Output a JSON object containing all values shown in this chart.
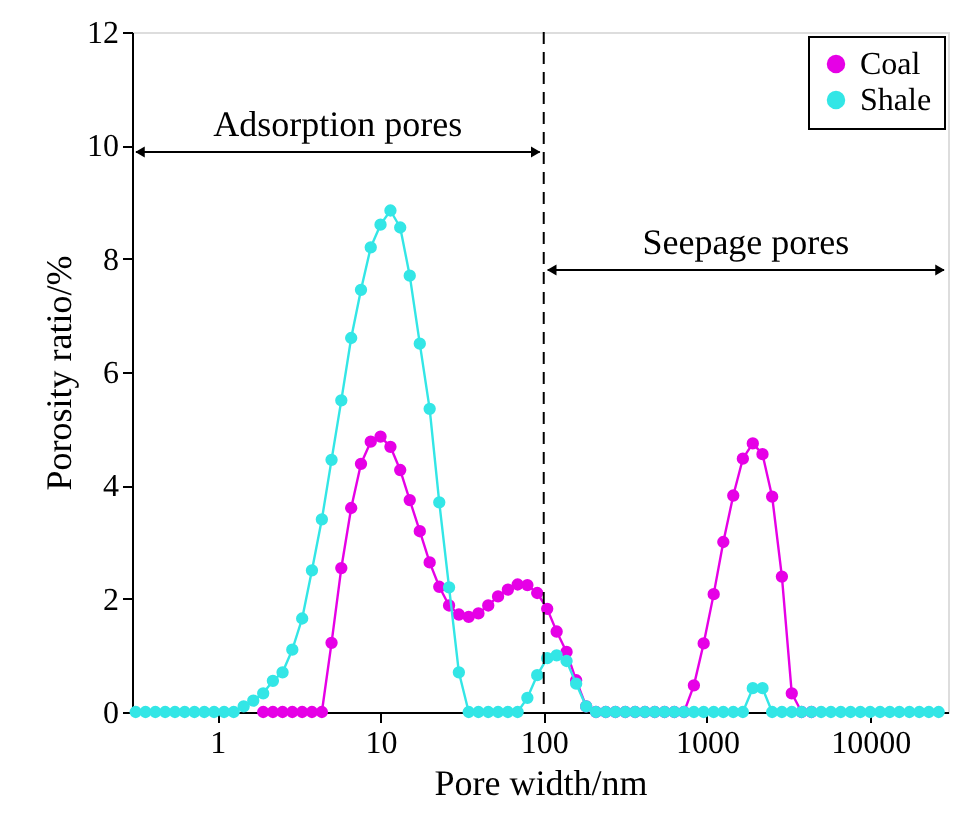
{
  "chart_data": {
    "type": "line",
    "xlabel": "Pore width/nm",
    "ylabel": "Porosity ratio/%",
    "log": "x",
    "xlim": [
      0.3,
      30000
    ],
    "xticks": [
      1,
      10,
      100,
      1000,
      10000
    ],
    "ylim": [
      0,
      12
    ],
    "yticks": [
      0,
      2,
      4,
      6,
      8,
      10,
      12
    ],
    "grid": false,
    "legend": "top right",
    "marker": "circle",
    "line_style": "solid",
    "series": [
      {
        "name": "Coal",
        "color": "#e600e6",
        "x": [
          1.91,
          2.19,
          2.51,
          2.88,
          3.31,
          3.8,
          4.37,
          5.01,
          5.75,
          6.61,
          7.59,
          8.71,
          10.0,
          11.5,
          13.2,
          15.1,
          17.4,
          20.0,
          22.9,
          26.3,
          30.2,
          34.7,
          39.8,
          45.7,
          52.5,
          60.3,
          69.2,
          79.4,
          91.2,
          105,
          120,
          138,
          158,
          182,
          209,
          240,
          275,
          316,
          363,
          417,
          479,
          550,
          631,
          724,
          832,
          955,
          1100,
          1260,
          1450,
          1660,
          1910,
          2190,
          2510,
          2880,
          3310,
          3800,
          4370
        ],
        "values": [
          0,
          0,
          0,
          0,
          0,
          0,
          0,
          1.22,
          2.54,
          3.6,
          4.38,
          4.77,
          4.86,
          4.68,
          4.27,
          3.74,
          3.19,
          2.64,
          2.21,
          1.88,
          1.72,
          1.68,
          1.74,
          1.88,
          2.04,
          2.16,
          2.25,
          2.24,
          2.1,
          1.82,
          1.42,
          1.06,
          0.56,
          0.1,
          0,
          0,
          0,
          0,
          0,
          0,
          0,
          0,
          0,
          0,
          0.47,
          1.21,
          2.08,
          3.0,
          3.82,
          4.47,
          4.74,
          4.55,
          3.8,
          2.39,
          0.33,
          0,
          0
        ]
      },
      {
        "name": "Shale",
        "color": "#33e6e6",
        "x": [
          0.316,
          0.363,
          0.417,
          0.479,
          0.55,
          0.631,
          0.724,
          0.832,
          0.955,
          1.1,
          1.26,
          1.45,
          1.66,
          1.91,
          2.19,
          2.51,
          2.88,
          3.31,
          3.8,
          4.37,
          5.01,
          5.75,
          6.61,
          7.59,
          8.71,
          10.0,
          11.5,
          13.2,
          15.1,
          17.4,
          20.0,
          22.9,
          26.3,
          30.2,
          34.7,
          39.8,
          45.7,
          52.5,
          60.3,
          69.2,
          79.4,
          91.2,
          105,
          120,
          138,
          158,
          182,
          209,
          240,
          275,
          316,
          363,
          417,
          479,
          550,
          631,
          724,
          832,
          955,
          1100,
          1260,
          1450,
          1660,
          1910,
          2190,
          2510,
          2880,
          3310,
          3800,
          4370,
          5010,
          5750,
          6610,
          7590,
          8710,
          10000,
          11500,
          13200,
          15100,
          17400,
          20000,
          22900,
          26300
        ],
        "values": [
          0,
          0,
          0,
          0,
          0,
          0,
          0,
          0,
          0,
          0,
          0,
          0.1,
          0.2,
          0.33,
          0.55,
          0.7,
          1.1,
          1.65,
          2.5,
          3.4,
          4.45,
          5.5,
          6.6,
          7.45,
          8.2,
          8.6,
          8.85,
          8.55,
          7.7,
          6.5,
          5.35,
          3.7,
          2.2,
          0.7,
          0,
          0,
          0,
          0,
          0,
          0,
          0.25,
          0.65,
          0.95,
          1.0,
          0.9,
          0.5,
          0.1,
          0,
          0,
          0,
          0,
          0,
          0,
          0,
          0,
          0,
          0,
          0,
          0,
          0,
          0,
          0,
          0,
          0.42,
          0.42,
          0,
          0,
          0,
          0,
          0,
          0,
          0,
          0,
          0,
          0,
          0,
          0,
          0,
          0,
          0,
          0,
          0,
          0
        ]
      }
    ],
    "ref_lines": [
      {
        "axis": "x",
        "value": 100,
        "line_style": "dashed",
        "color": "#000000"
      }
    ],
    "annotations": [
      "Adsorption pores",
      "Seepage pores"
    ]
  }
}
